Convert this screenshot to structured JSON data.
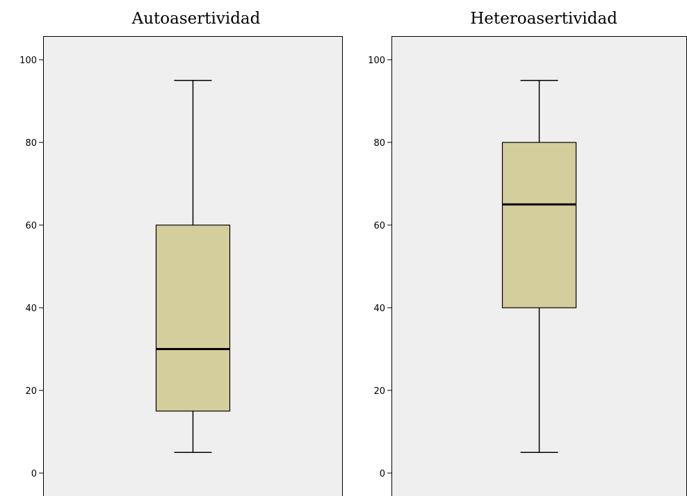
{
  "chart_data": [
    {
      "type": "boxplot",
      "title": "Autoasertividad",
      "ylim": [
        0,
        100
      ],
      "yticks": [
        0,
        20,
        40,
        60,
        80,
        100
      ],
      "grid": false,
      "box": {
        "whisker_low": 5,
        "q1": 15,
        "median": 30,
        "q3": 60,
        "whisker_high": 95
      },
      "colors": {
        "plot_bg": "#efefef",
        "box_fill": "#d3ce9b",
        "stroke": "#000000"
      }
    },
    {
      "type": "boxplot",
      "title": "Heteroasertividad",
      "ylim": [
        0,
        100
      ],
      "yticks": [
        0,
        20,
        40,
        60,
        80,
        100
      ],
      "grid": false,
      "box": {
        "whisker_low": 5,
        "q1": 40,
        "median": 65,
        "q3": 80,
        "whisker_high": 95
      },
      "colors": {
        "plot_bg": "#efefef",
        "box_fill": "#d3ce9b",
        "stroke": "#000000"
      }
    }
  ]
}
